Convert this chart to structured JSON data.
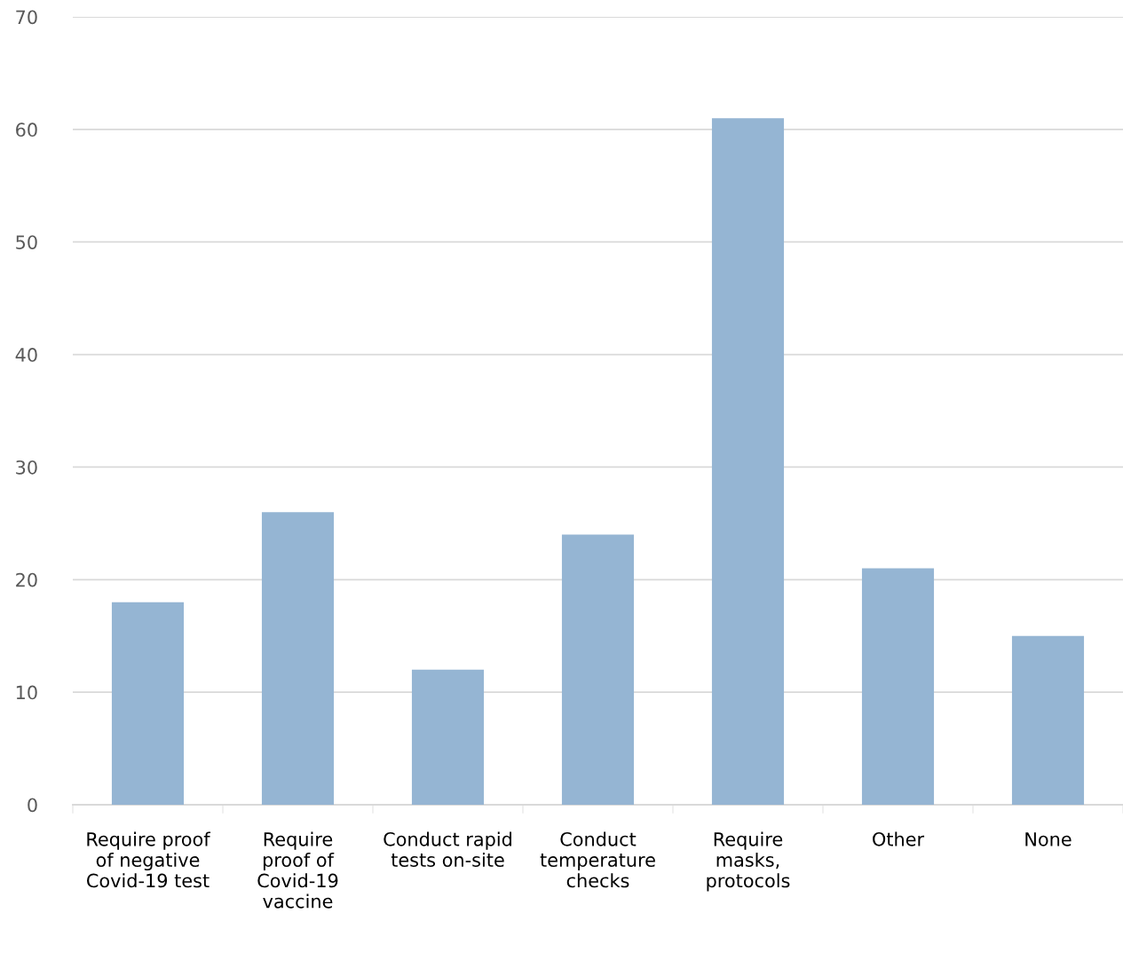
{
  "chart_data": {
    "type": "bar",
    "categories": [
      "Require proof\nof negative\nCovid-19 test",
      "Require\nproof of\nCovid-19\nvaccine",
      "Conduct rapid\ntests on-site",
      "Conduct\ntemperature\nchecks",
      "Require\nmasks,\nprotocols",
      "Other",
      "None"
    ],
    "values": [
      18,
      26,
      12,
      24,
      61,
      21,
      15
    ],
    "color": "#95b5d3",
    "ylim": [
      0,
      70
    ],
    "yticks": [
      0,
      10,
      20,
      30,
      40,
      50,
      60,
      70
    ],
    "grid": "y",
    "legend": false
  }
}
